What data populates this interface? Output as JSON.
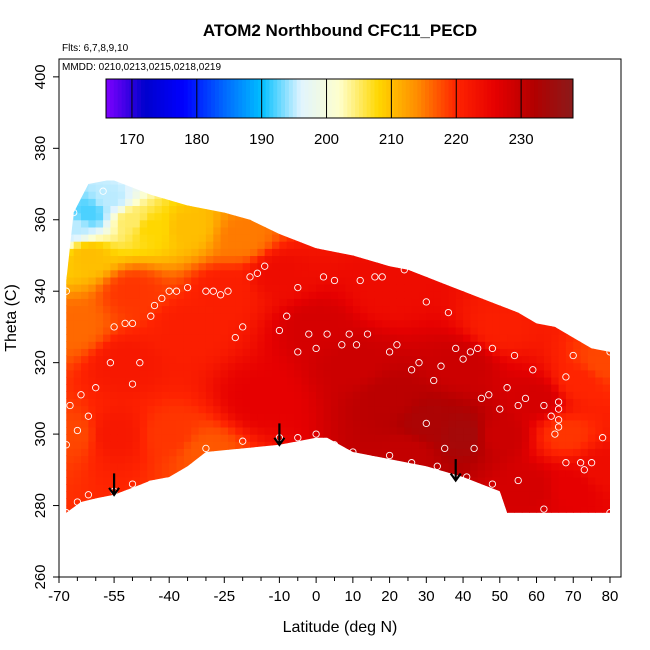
{
  "chart_data": {
    "type": "heatmap",
    "title": "ATOM2 Northbound CFC11_PECD",
    "notes": [
      "Flts: 6,7,8,9,10",
      "MMDD: 0210,0213,0215,0218,0219"
    ],
    "xlabel": "Latitude (deg N)",
    "ylabel": "Theta (C)",
    "xlim": [
      -70,
      83
    ],
    "ylim": [
      260,
      405
    ],
    "x_ticks": [
      -70,
      -55,
      -40,
      -25,
      -10,
      0,
      10,
      20,
      30,
      40,
      50,
      60,
      70,
      80
    ],
    "x_tick_labels": [
      "-70",
      "-55",
      "-40",
      "-25",
      "-10",
      "0",
      "10",
      "20",
      "30",
      "40",
      "50",
      "60",
      "70",
      "80"
    ],
    "y_ticks": [
      260,
      280,
      300,
      320,
      340,
      360,
      380,
      400
    ],
    "y_tick_labels": [
      "260",
      "280",
      "300",
      "320",
      "340",
      "360",
      "380",
      "400"
    ],
    "colorbar": {
      "range": [
        166,
        238
      ],
      "ticks": [
        170,
        180,
        190,
        200,
        210,
        220,
        230
      ],
      "tick_labels": [
        "170",
        "180",
        "190",
        "200",
        "210",
        "220",
        "230"
      ],
      "colors": [
        "#7f00ff",
        "#0000cd",
        "#0000ff",
        "#0064ff",
        "#00bfff",
        "#e0f4ff",
        "#ffffcc",
        "#ffd700",
        "#ff8c00",
        "#ff2400",
        "#e60000",
        "#b20000",
        "#8b1a1a"
      ]
    },
    "field_boundary": {
      "top": [
        [
          -68,
          343
        ],
        [
          -66,
          362
        ],
        [
          -62,
          370
        ],
        [
          -57,
          371
        ],
        [
          -55,
          371
        ],
        [
          -50,
          369
        ],
        [
          -45,
          367
        ],
        [
          -35,
          364
        ],
        [
          -25,
          362
        ],
        [
          -18,
          360
        ],
        [
          -10,
          356
        ],
        [
          0,
          352
        ],
        [
          10,
          350
        ],
        [
          20,
          347
        ],
        [
          25,
          346
        ],
        [
          30,
          344
        ],
        [
          35,
          342
        ],
        [
          40,
          340
        ],
        [
          45,
          338
        ],
        [
          50,
          336
        ],
        [
          55,
          334
        ],
        [
          60,
          331
        ],
        [
          65,
          330
        ],
        [
          70,
          327
        ],
        [
          75,
          324
        ],
        [
          80,
          323
        ]
      ],
      "bottom": [
        [
          -68,
          278
        ],
        [
          -64,
          281
        ],
        [
          -60,
          282
        ],
        [
          -55,
          283
        ],
        [
          -50,
          285
        ],
        [
          -45,
          287
        ],
        [
          -40,
          288
        ],
        [
          -35,
          291
        ],
        [
          -30,
          295
        ],
        [
          -20,
          296
        ],
        [
          -10,
          297
        ],
        [
          0,
          299
        ],
        [
          3,
          299
        ],
        [
          10,
          295
        ],
        [
          20,
          293
        ],
        [
          30,
          291
        ],
        [
          40,
          288
        ],
        [
          45,
          286
        ],
        [
          50,
          284
        ],
        [
          52,
          278
        ],
        [
          60,
          278
        ],
        [
          70,
          278
        ],
        [
          80,
          278
        ]
      ]
    },
    "field_centers": [
      {
        "lat": -66,
        "theta": 358,
        "value": 195
      },
      {
        "lat": -62,
        "theta": 362,
        "value": 192
      },
      {
        "lat": -56,
        "theta": 366,
        "value": 195
      },
      {
        "lat": -50,
        "theta": 360,
        "value": 205
      },
      {
        "lat": -62,
        "theta": 350,
        "value": 210
      },
      {
        "lat": -45,
        "theta": 358,
        "value": 208
      },
      {
        "lat": -35,
        "theta": 358,
        "value": 210
      },
      {
        "lat": -20,
        "theta": 355,
        "value": 215
      },
      {
        "lat": -66,
        "theta": 330,
        "value": 216
      },
      {
        "lat": -66,
        "theta": 300,
        "value": 218
      },
      {
        "lat": -52,
        "theta": 320,
        "value": 222
      },
      {
        "lat": -55,
        "theta": 300,
        "value": 222
      },
      {
        "lat": -50,
        "theta": 340,
        "value": 219
      },
      {
        "lat": -40,
        "theta": 300,
        "value": 219
      },
      {
        "lat": -30,
        "theta": 295,
        "value": 217
      },
      {
        "lat": -35,
        "theta": 330,
        "value": 221
      },
      {
        "lat": -25,
        "theta": 340,
        "value": 221
      },
      {
        "lat": -10,
        "theta": 345,
        "value": 224
      },
      {
        "lat": -15,
        "theta": 310,
        "value": 226
      },
      {
        "lat": 0,
        "theta": 330,
        "value": 228
      },
      {
        "lat": 10,
        "theta": 320,
        "value": 229
      },
      {
        "lat": 20,
        "theta": 340,
        "value": 224
      },
      {
        "lat": 20,
        "theta": 310,
        "value": 231
      },
      {
        "lat": 30,
        "theta": 303,
        "value": 233
      },
      {
        "lat": 40,
        "theta": 300,
        "value": 234
      },
      {
        "lat": 25,
        "theta": 295,
        "value": 230
      },
      {
        "lat": 40,
        "theta": 320,
        "value": 229
      },
      {
        "lat": 50,
        "theta": 300,
        "value": 229
      },
      {
        "lat": 50,
        "theta": 330,
        "value": 221
      },
      {
        "lat": 60,
        "theta": 310,
        "value": 228
      },
      {
        "lat": 58,
        "theta": 285,
        "value": 228
      },
      {
        "lat": 68,
        "theta": 300,
        "value": 219
      },
      {
        "lat": 72,
        "theta": 315,
        "value": 220
      },
      {
        "lat": 78,
        "theta": 320,
        "value": 218
      },
      {
        "lat": 78,
        "theta": 290,
        "value": 224
      },
      {
        "lat": 70,
        "theta": 285,
        "value": 226
      }
    ],
    "observations": [
      [
        -64,
        369
      ],
      [
        -58,
        368
      ],
      [
        -68,
        359
      ],
      [
        -66,
        362
      ],
      [
        -68,
        340
      ],
      [
        -67,
        308
      ],
      [
        -65,
        301
      ],
      [
        -68,
        297
      ],
      [
        -64,
        311
      ],
      [
        -60,
        313
      ],
      [
        -62,
        305
      ],
      [
        -56,
        320
      ],
      [
        -55,
        330
      ],
      [
        -52,
        331
      ],
      [
        -50,
        331
      ],
      [
        -50,
        314
      ],
      [
        -48,
        320
      ],
      [
        -45,
        333
      ],
      [
        -44,
        336
      ],
      [
        -42,
        338
      ],
      [
        -40,
        340
      ],
      [
        -38,
        340
      ],
      [
        -35,
        341
      ],
      [
        -30,
        340
      ],
      [
        -28,
        340
      ],
      [
        -26,
        339
      ],
      [
        -24,
        340
      ],
      [
        -22,
        327
      ],
      [
        -20,
        330
      ],
      [
        -18,
        344
      ],
      [
        -16,
        345
      ],
      [
        -14,
        347
      ],
      [
        -10,
        329
      ],
      [
        -8,
        333
      ],
      [
        -5,
        341
      ],
      [
        -5,
        323
      ],
      [
        -2,
        328
      ],
      [
        0,
        324
      ],
      [
        2,
        344
      ],
      [
        3,
        328
      ],
      [
        5,
        343
      ],
      [
        7,
        325
      ],
      [
        9,
        328
      ],
      [
        11,
        325
      ],
      [
        12,
        343
      ],
      [
        14,
        328
      ],
      [
        16,
        344
      ],
      [
        18,
        344
      ],
      [
        20,
        323
      ],
      [
        22,
        325
      ],
      [
        24,
        346
      ],
      [
        26,
        318
      ],
      [
        28,
        320
      ],
      [
        30,
        337
      ],
      [
        32,
        315
      ],
      [
        34,
        319
      ],
      [
        36,
        334
      ],
      [
        38,
        324
      ],
      [
        40,
        321
      ],
      [
        42,
        323
      ],
      [
        44,
        324
      ],
      [
        45,
        310
      ],
      [
        47,
        311
      ],
      [
        48,
        324
      ],
      [
        50,
        307
      ],
      [
        52,
        313
      ],
      [
        54,
        322
      ],
      [
        55,
        308
      ],
      [
        57,
        310
      ],
      [
        59,
        318
      ],
      [
        62,
        308
      ],
      [
        64,
        305
      ],
      [
        66,
        309
      ],
      [
        66,
        307
      ],
      [
        66,
        304
      ],
      [
        66,
        302
      ],
      [
        65,
        300
      ],
      [
        68,
        316
      ],
      [
        70,
        322
      ],
      [
        72,
        292
      ],
      [
        73,
        290
      ],
      [
        75,
        292
      ],
      [
        78,
        299
      ],
      [
        80,
        323
      ],
      [
        80,
        278
      ],
      [
        -68,
        278
      ],
      [
        -65,
        281
      ],
      [
        -62,
        283
      ],
      [
        -55,
        284
      ],
      [
        -50,
        286
      ],
      [
        -45,
        286
      ],
      [
        -30,
        296
      ],
      [
        -20,
        298
      ],
      [
        -10,
        299
      ],
      [
        -5,
        299
      ],
      [
        0,
        300
      ],
      [
        5,
        297
      ],
      [
        10,
        295
      ],
      [
        20,
        294
      ],
      [
        26,
        292
      ],
      [
        33,
        291
      ],
      [
        41,
        288
      ],
      [
        48,
        286
      ],
      [
        55,
        287
      ],
      [
        62,
        279
      ],
      [
        68,
        292
      ],
      [
        30,
        303
      ],
      [
        35,
        296
      ],
      [
        43,
        296
      ]
    ],
    "arrows": [
      {
        "lat": -55,
        "theta_top": 289,
        "theta_bottom": 283
      },
      {
        "lat": -10,
        "theta_top": 303,
        "theta_bottom": 297
      },
      {
        "lat": 38,
        "theta_top": 293,
        "theta_bottom": 287
      }
    ]
  }
}
